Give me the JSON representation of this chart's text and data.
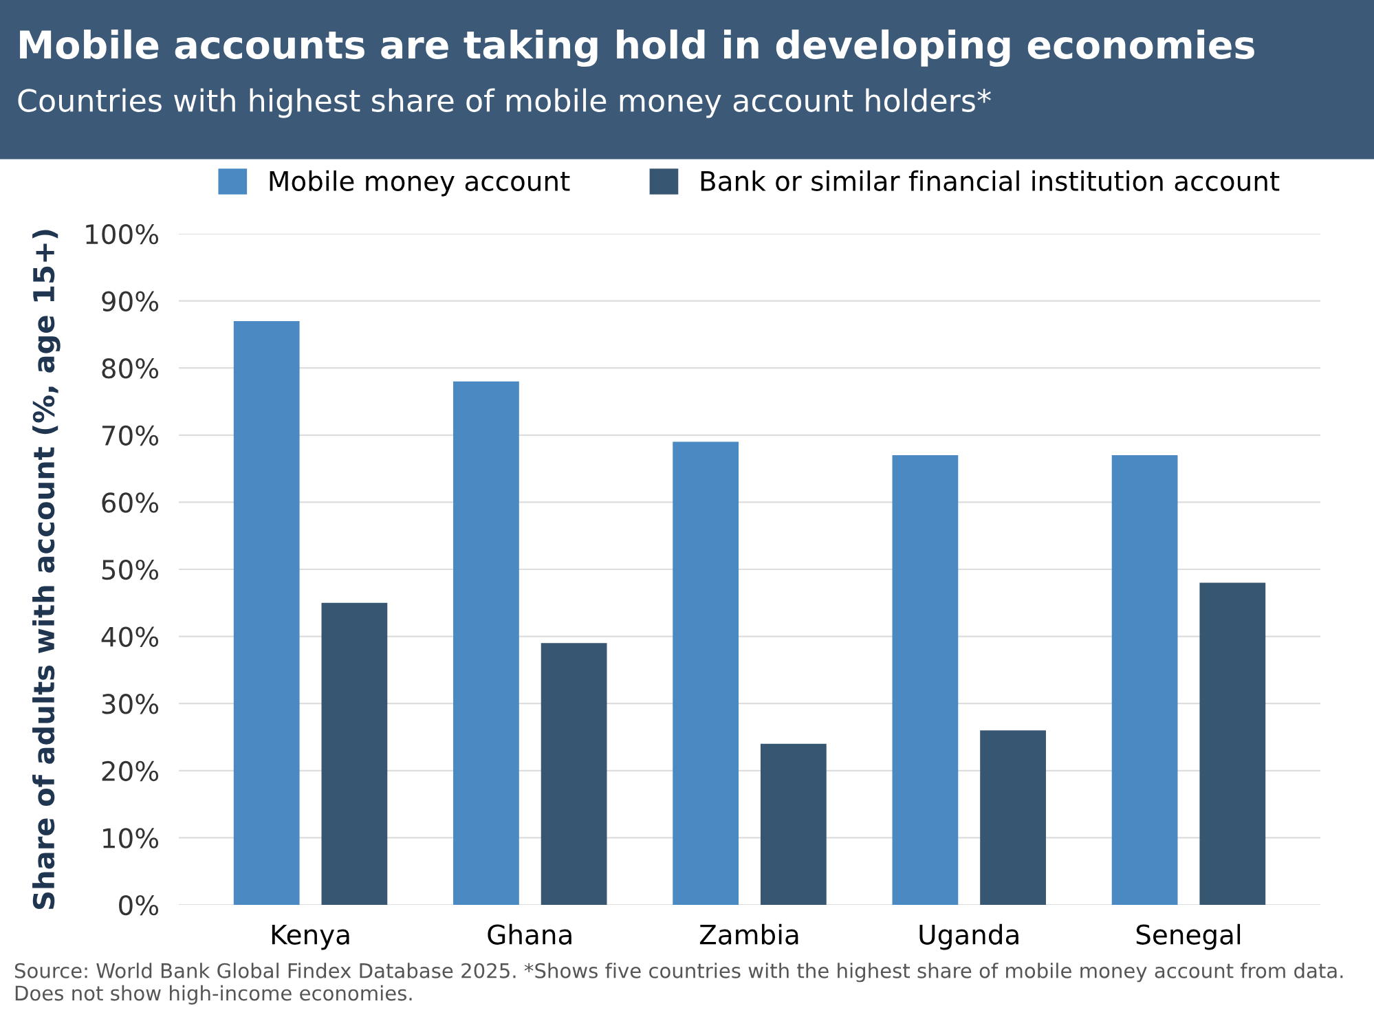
{
  "chart_data": {
    "type": "bar",
    "title": "Mobile accounts are taking hold in developing economies",
    "subtitle": "Countries with highest share of mobile money account holders*",
    "ylabel": "Share of adults with account (%, age 15+)",
    "categories": [
      "Kenya",
      "Ghana",
      "Zambia",
      "Uganda",
      "Senegal"
    ],
    "series": [
      {
        "name": "Mobile money account",
        "color": "#4a89c2",
        "values": [
          87,
          78,
          69,
          67,
          67
        ]
      },
      {
        "name": "Bank or similar financial institution account",
        "color": "#375672",
        "values": [
          45,
          39,
          24,
          26,
          48
        ]
      }
    ],
    "ylim": [
      0,
      100
    ],
    "yticks": [
      {
        "value": 0,
        "label": "0%"
      },
      {
        "value": 10,
        "label": "10%"
      },
      {
        "value": 20,
        "label": "20%"
      },
      {
        "value": 30,
        "label": "30%"
      },
      {
        "value": 40,
        "label": "40%"
      },
      {
        "value": 50,
        "label": "50%"
      },
      {
        "value": 60,
        "label": "60%"
      },
      {
        "value": 70,
        "label": "70%"
      },
      {
        "value": 80,
        "label": "80%"
      },
      {
        "value": 90,
        "label": "90%"
      },
      {
        "value": 100,
        "label": "100%"
      }
    ],
    "grid": "y",
    "legend": "top",
    "annotations": [
      "Source: World Bank Global Findex Database 2025. *Shows five countries with the highest share of mobile money account from data. Does not show high-income economies."
    ]
  }
}
